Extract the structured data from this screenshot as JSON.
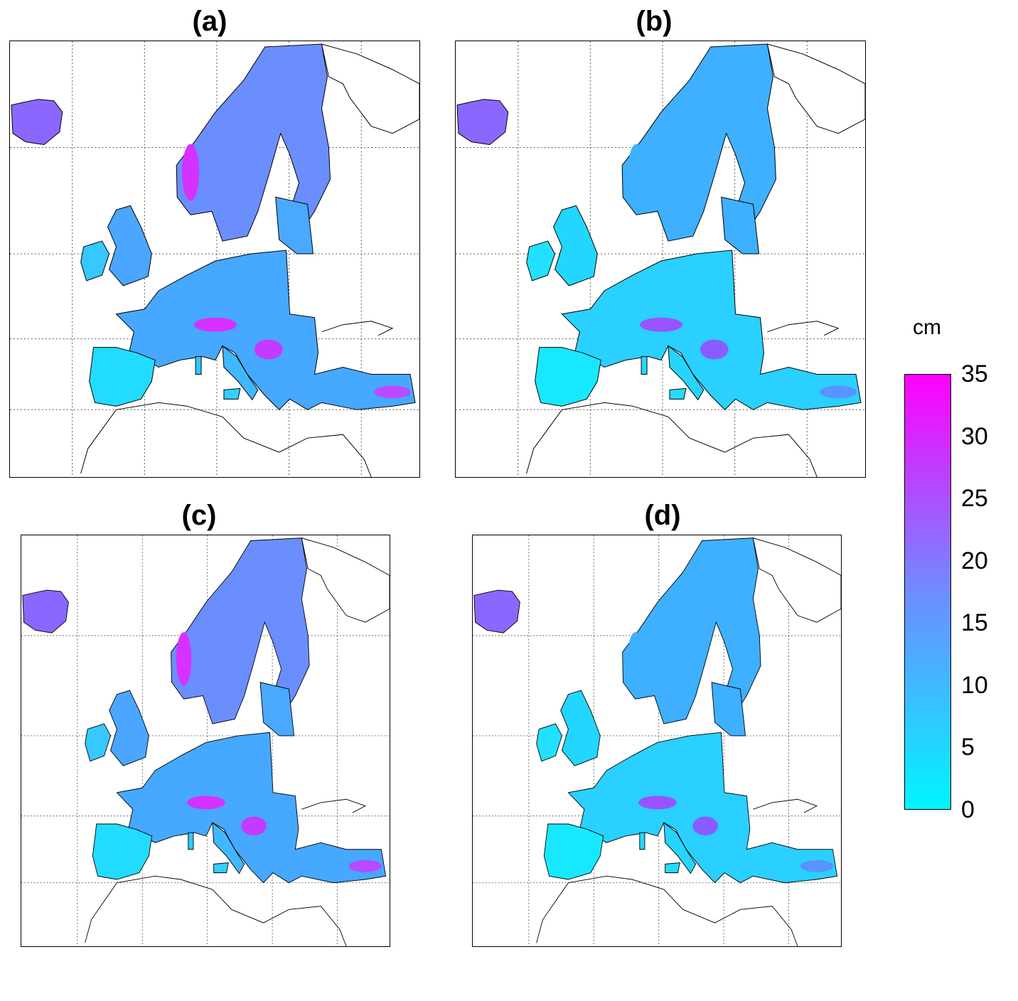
{
  "panels": [
    {
      "id": "a",
      "title": "(a)",
      "variant": "high"
    },
    {
      "id": "b",
      "title": "(b)",
      "variant": "low"
    },
    {
      "id": "c",
      "title": "(c)",
      "variant": "high"
    },
    {
      "id": "d",
      "title": "(d)",
      "variant": "low"
    }
  ],
  "colorbar": {
    "unit": "cm",
    "ticks": [
      "35",
      "30",
      "25",
      "20",
      "15",
      "10",
      "5",
      "0"
    ],
    "range": [
      0,
      35
    ],
    "colors": {
      "min": "#00f5ff",
      "mid": "#6f8cff",
      "max": "#ff00ff"
    }
  }
}
